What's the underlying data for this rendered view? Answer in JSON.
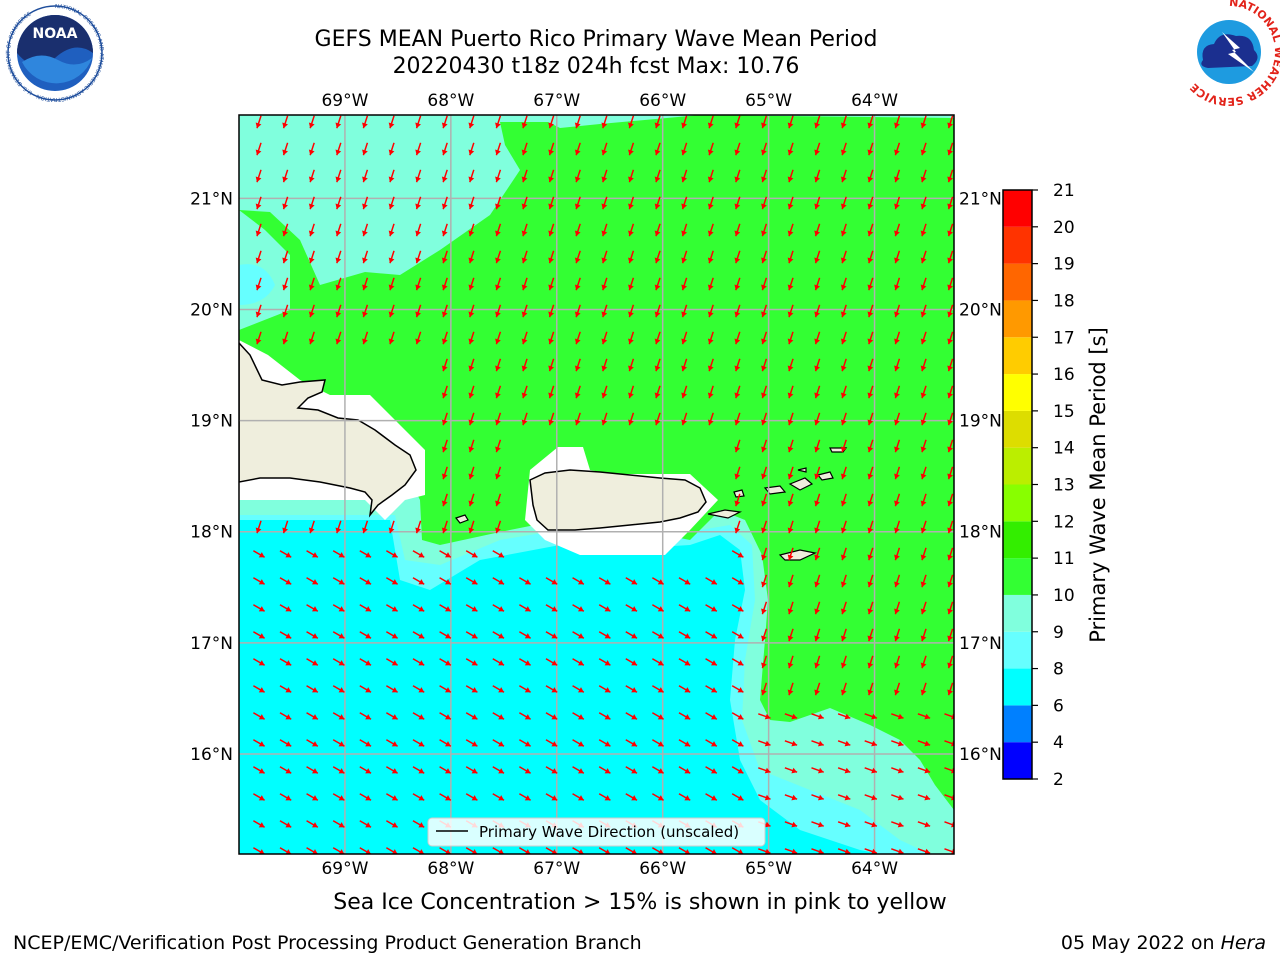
{
  "header": {
    "title_line1": "GEFS MEAN Puerto Rico Primary Wave Mean Period",
    "title_line2": "20220430 t18z 024h fcst   Max: 10.76",
    "noaa_logo_text": "NOAA",
    "noaa_ring_text": "NATIONAL OCEANIC AND ATMOSPHERIC ADMINISTRATION · U.S. DEPARTMENT OF COMMERCE",
    "nws_ring_text": "NATIONAL WEATHER SERVICE"
  },
  "footer": {
    "left": "NCEP/EMC/Verification Post Processing Product Generation Branch",
    "right_date": "05 May 2022 on ",
    "right_host": "Hera"
  },
  "subtitle": "Sea Ice Concentration > 15% is shown in pink to yellow",
  "legend": {
    "label": "Primary Wave Direction (unscaled)"
  },
  "colors": {
    "land": "#efeedd",
    "ocean_green": "#33ff33",
    "ocean_cyan": "#00ffff",
    "ocean_aqua": "#80ffdd",
    "ocean_lightcyan": "#66ffff",
    "arrow": "#ff0000",
    "grid": "#b0b0b0"
  },
  "chart_data": {
    "type": "heatmap",
    "title": "GEFS MEAN Puerto Rico Primary Wave Mean Period",
    "xlim": [
      -70,
      -63.25
    ],
    "ylim": [
      15.1,
      21.75
    ],
    "x_ticks": [
      -69,
      -68,
      -67,
      -66,
      -65,
      -64
    ],
    "y_ticks": [
      16,
      17,
      18,
      19,
      20,
      21
    ],
    "x_tick_labels": [
      "69°W",
      "68°W",
      "67°W",
      "66°W",
      "65°W",
      "64°W"
    ],
    "y_tick_labels": [
      "16°N",
      "17°N",
      "18°N",
      "19°N",
      "20°N",
      "21°N"
    ],
    "grid": true,
    "max_value": 10.76,
    "colorbar": {
      "label": "Primary Wave Mean Period [s]",
      "boundaries": [
        2,
        4,
        6,
        8,
        9,
        10,
        11,
        12,
        13,
        14,
        15,
        16,
        17,
        18,
        19,
        20,
        21
      ],
      "colors": [
        "#0000ff",
        "#0080ff",
        "#00ffff",
        "#66ffff",
        "#80ffdd",
        "#33ff33",
        "#33ee00",
        "#88ff00",
        "#bbee00",
        "#dddd00",
        "#ffff00",
        "#ffcc00",
        "#ff9900",
        "#ff6600",
        "#ff3300",
        "#ff0000"
      ]
    },
    "regions": [
      {
        "name": "north-east open ocean",
        "approx_period_s": 10.5
      },
      {
        "name": "north-west near Hispaniola",
        "approx_period_s": 9.5
      },
      {
        "name": "Caribbean Sea south",
        "approx_period_s": 7.5
      },
      {
        "name": "south-east transition",
        "approx_period_s": 9
      }
    ],
    "legend_placement": "bottom-center"
  }
}
